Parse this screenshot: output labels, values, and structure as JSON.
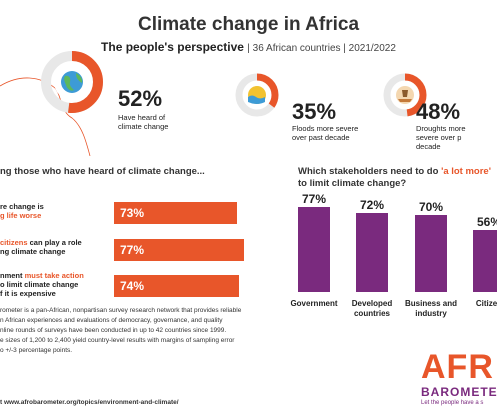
{
  "title": "Climate change in Africa",
  "subtitle": {
    "main": "The people's perspective",
    "detail": "| 36 African countries | 2021/2022"
  },
  "icons": [
    "globe-icon",
    "sun-water-icon",
    "drought-icon"
  ],
  "stats": [
    {
      "value": "52%",
      "label_l1": "Have heard of",
      "label_l2": "climate change",
      "l3": "",
      "fraction": 0.52,
      "icon": "globe-icon"
    },
    {
      "value": "35%",
      "label_l1": "Floods more severe",
      "label_l2": "over past decade",
      "l3": "",
      "fraction": 0.35,
      "icon": "sun-water-icon"
    },
    {
      "value": "48%",
      "label_l1": "Droughts more",
      "label_l2": "severe over p",
      "l3": "decade",
      "fraction": 0.48,
      "icon": "drought-icon"
    }
  ],
  "left_section": {
    "title": "ng those who have heard of climate change...",
    "rows": [
      {
        "pre1": "re change is",
        "hl1": "",
        "post1": "",
        "pre2": "",
        "hl2": "g life worse",
        "post2": "",
        "l3": "",
        "value": "73%",
        "fraction": 0.73
      },
      {
        "pre1": "",
        "hl1": "citizens",
        "post1": " can play a role",
        "pre2": "ng climate change",
        "hl2": "",
        "post2": "",
        "l3": "",
        "value": "77%",
        "fraction": 0.77
      },
      {
        "pre1": "nment ",
        "hl1": "must take action",
        "post1": "",
        "pre2": "o limit climate change",
        "hl2": "",
        "post2": "",
        "l3": "f it is expensive",
        "value": "74%",
        "fraction": 0.74
      }
    ]
  },
  "chart_data": {
    "type": "bar",
    "title_pre": "Which stakeholders need to do ",
    "title_highlight": "'a lot more'",
    "title_post": "to limit climate change?",
    "categories": [
      "Government",
      "Developed countries",
      "Business and industry",
      "Citizen"
    ],
    "category_lines": [
      [
        "Government"
      ],
      [
        "Developed",
        "countries"
      ],
      [
        "Business and",
        "industry"
      ],
      [
        "Citizen"
      ]
    ],
    "values": [
      77,
      72,
      70,
      56
    ],
    "value_labels": [
      "77%",
      "72%",
      "70%",
      "56%"
    ],
    "ylim": [
      0,
      100
    ],
    "color": "#7a2a7e"
  },
  "footer": {
    "lines": [
      "rometer is a pan-African, nonpartisan survey research network that provides reliable",
      "n African experiences and evaluations of democracy, governance, and quality",
      "nline rounds of surveys have been conducted in up to 42 countries since 1999.",
      "e sizes of 1,200 to 2,400 yield country-level results with margins of sampling error",
      "o +/-3 percentage points."
    ],
    "link": "t www.afrobarometer.org/topics/environment-and-climate/"
  },
  "logo": {
    "afr": "AFR",
    "baro": "BAROMETER",
    "tagline": "Let the people have a s"
  },
  "colors": {
    "orange": "#e8562a",
    "purple": "#7a2a7e",
    "ring_grey": "#e8e8e8"
  }
}
